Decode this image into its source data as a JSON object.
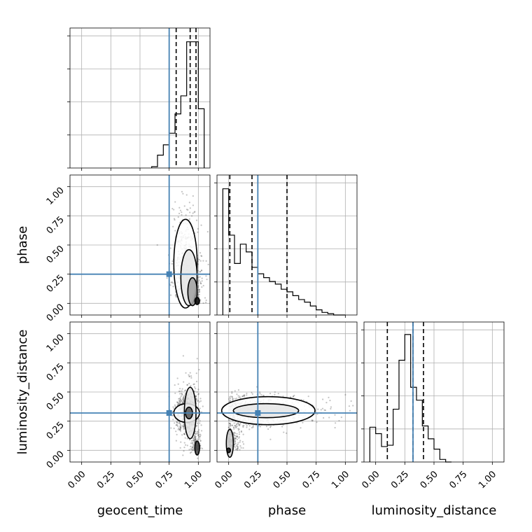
{
  "chart_data": {
    "type": "corner",
    "parameters": [
      "geocent_time",
      "phase",
      "luminosity_distance"
    ],
    "axis_range": [
      -0.1,
      1.1
    ],
    "ticks": [
      0.0,
      0.25,
      0.5,
      0.75,
      1.0
    ],
    "tick_labels": [
      "0.00",
      "0.25",
      "0.50",
      "0.75",
      "1.00"
    ],
    "grid": true,
    "colors": {
      "truth": "#4682b4",
      "hist": "#000000",
      "quantile": "#000000",
      "samples": "#555555"
    },
    "truths": {
      "geocent_time": 0.75,
      "phase": 0.25,
      "luminosity_distance": 0.32
    },
    "histograms": {
      "geocent_time": {
        "bin_edges": [
          0.6,
          0.65,
          0.7,
          0.75,
          0.8,
          0.85,
          0.9,
          0.95,
          1.0,
          1.05
        ],
        "counts": [
          0.01,
          0.1,
          0.18,
          0.27,
          0.42,
          0.56,
          0.98,
          0.98,
          0.46
        ],
        "quantiles": [
          0.81,
          0.93,
          0.98
        ]
      },
      "phase": {
        "bin_edges": [
          -0.05,
          0.0,
          0.05,
          0.1,
          0.15,
          0.2,
          0.25,
          0.3,
          0.35,
          0.4,
          0.45,
          0.5,
          0.55,
          0.6,
          0.65,
          0.7,
          0.75,
          0.8,
          0.85,
          0.9,
          0.95,
          1.0
        ],
        "counts": [
          0.98,
          0.62,
          0.4,
          0.55,
          0.49,
          0.37,
          0.32,
          0.29,
          0.26,
          0.24,
          0.2,
          0.18,
          0.15,
          0.12,
          0.1,
          0.07,
          0.04,
          0.02,
          0.01,
          0.0,
          0.0
        ],
        "quantiles": [
          0.01,
          0.2,
          0.5
        ]
      },
      "luminosity_distance": {
        "bin_edges": [
          -0.05,
          0.0,
          0.05,
          0.1,
          0.15,
          0.2,
          0.25,
          0.3,
          0.35,
          0.4,
          0.45,
          0.5,
          0.55,
          0.6,
          0.65
        ],
        "counts": [
          0.27,
          0.22,
          0.12,
          0.13,
          0.41,
          0.79,
          0.99,
          0.58,
          0.48,
          0.28,
          0.18,
          0.1,
          0.02,
          0.0
        ],
        "quantiles": [
          0.1,
          0.32,
          0.41
        ]
      }
    },
    "pairs": [
      {
        "x": "geocent_time",
        "y": "phase",
        "position": "row2-col1"
      },
      {
        "x": "geocent_time",
        "y": "luminosity_distance",
        "position": "row3-col1"
      },
      {
        "x": "phase",
        "y": "luminosity_distance",
        "position": "row3-col2"
      }
    ]
  }
}
